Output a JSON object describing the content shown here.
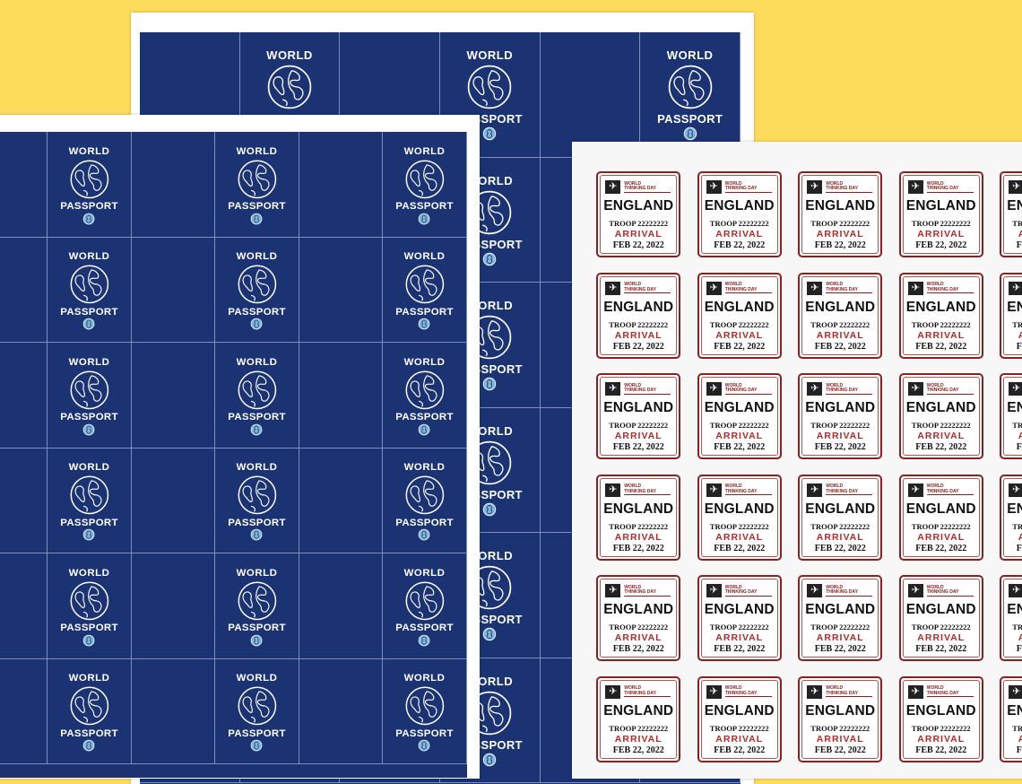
{
  "colors": {
    "background": "#fddc5c",
    "navy": "#1b3373",
    "stamp_red": "#8b2020",
    "arrival_red": "#b22a2a"
  },
  "passport_cover": {
    "top_text": "WORLD",
    "bottom_text": "PASSPORT",
    "globe_icon": "globe-icon",
    "badge_icon": "trefoil-icon"
  },
  "stamp": {
    "header_line1": "WORLD",
    "header_line2": "THINKING DAY",
    "icon": "airplane-icon",
    "country": "ENGLAND",
    "troop": "TROOP 22222222",
    "status": "ARRIVAL",
    "date": "FEB 22, 2022"
  }
}
